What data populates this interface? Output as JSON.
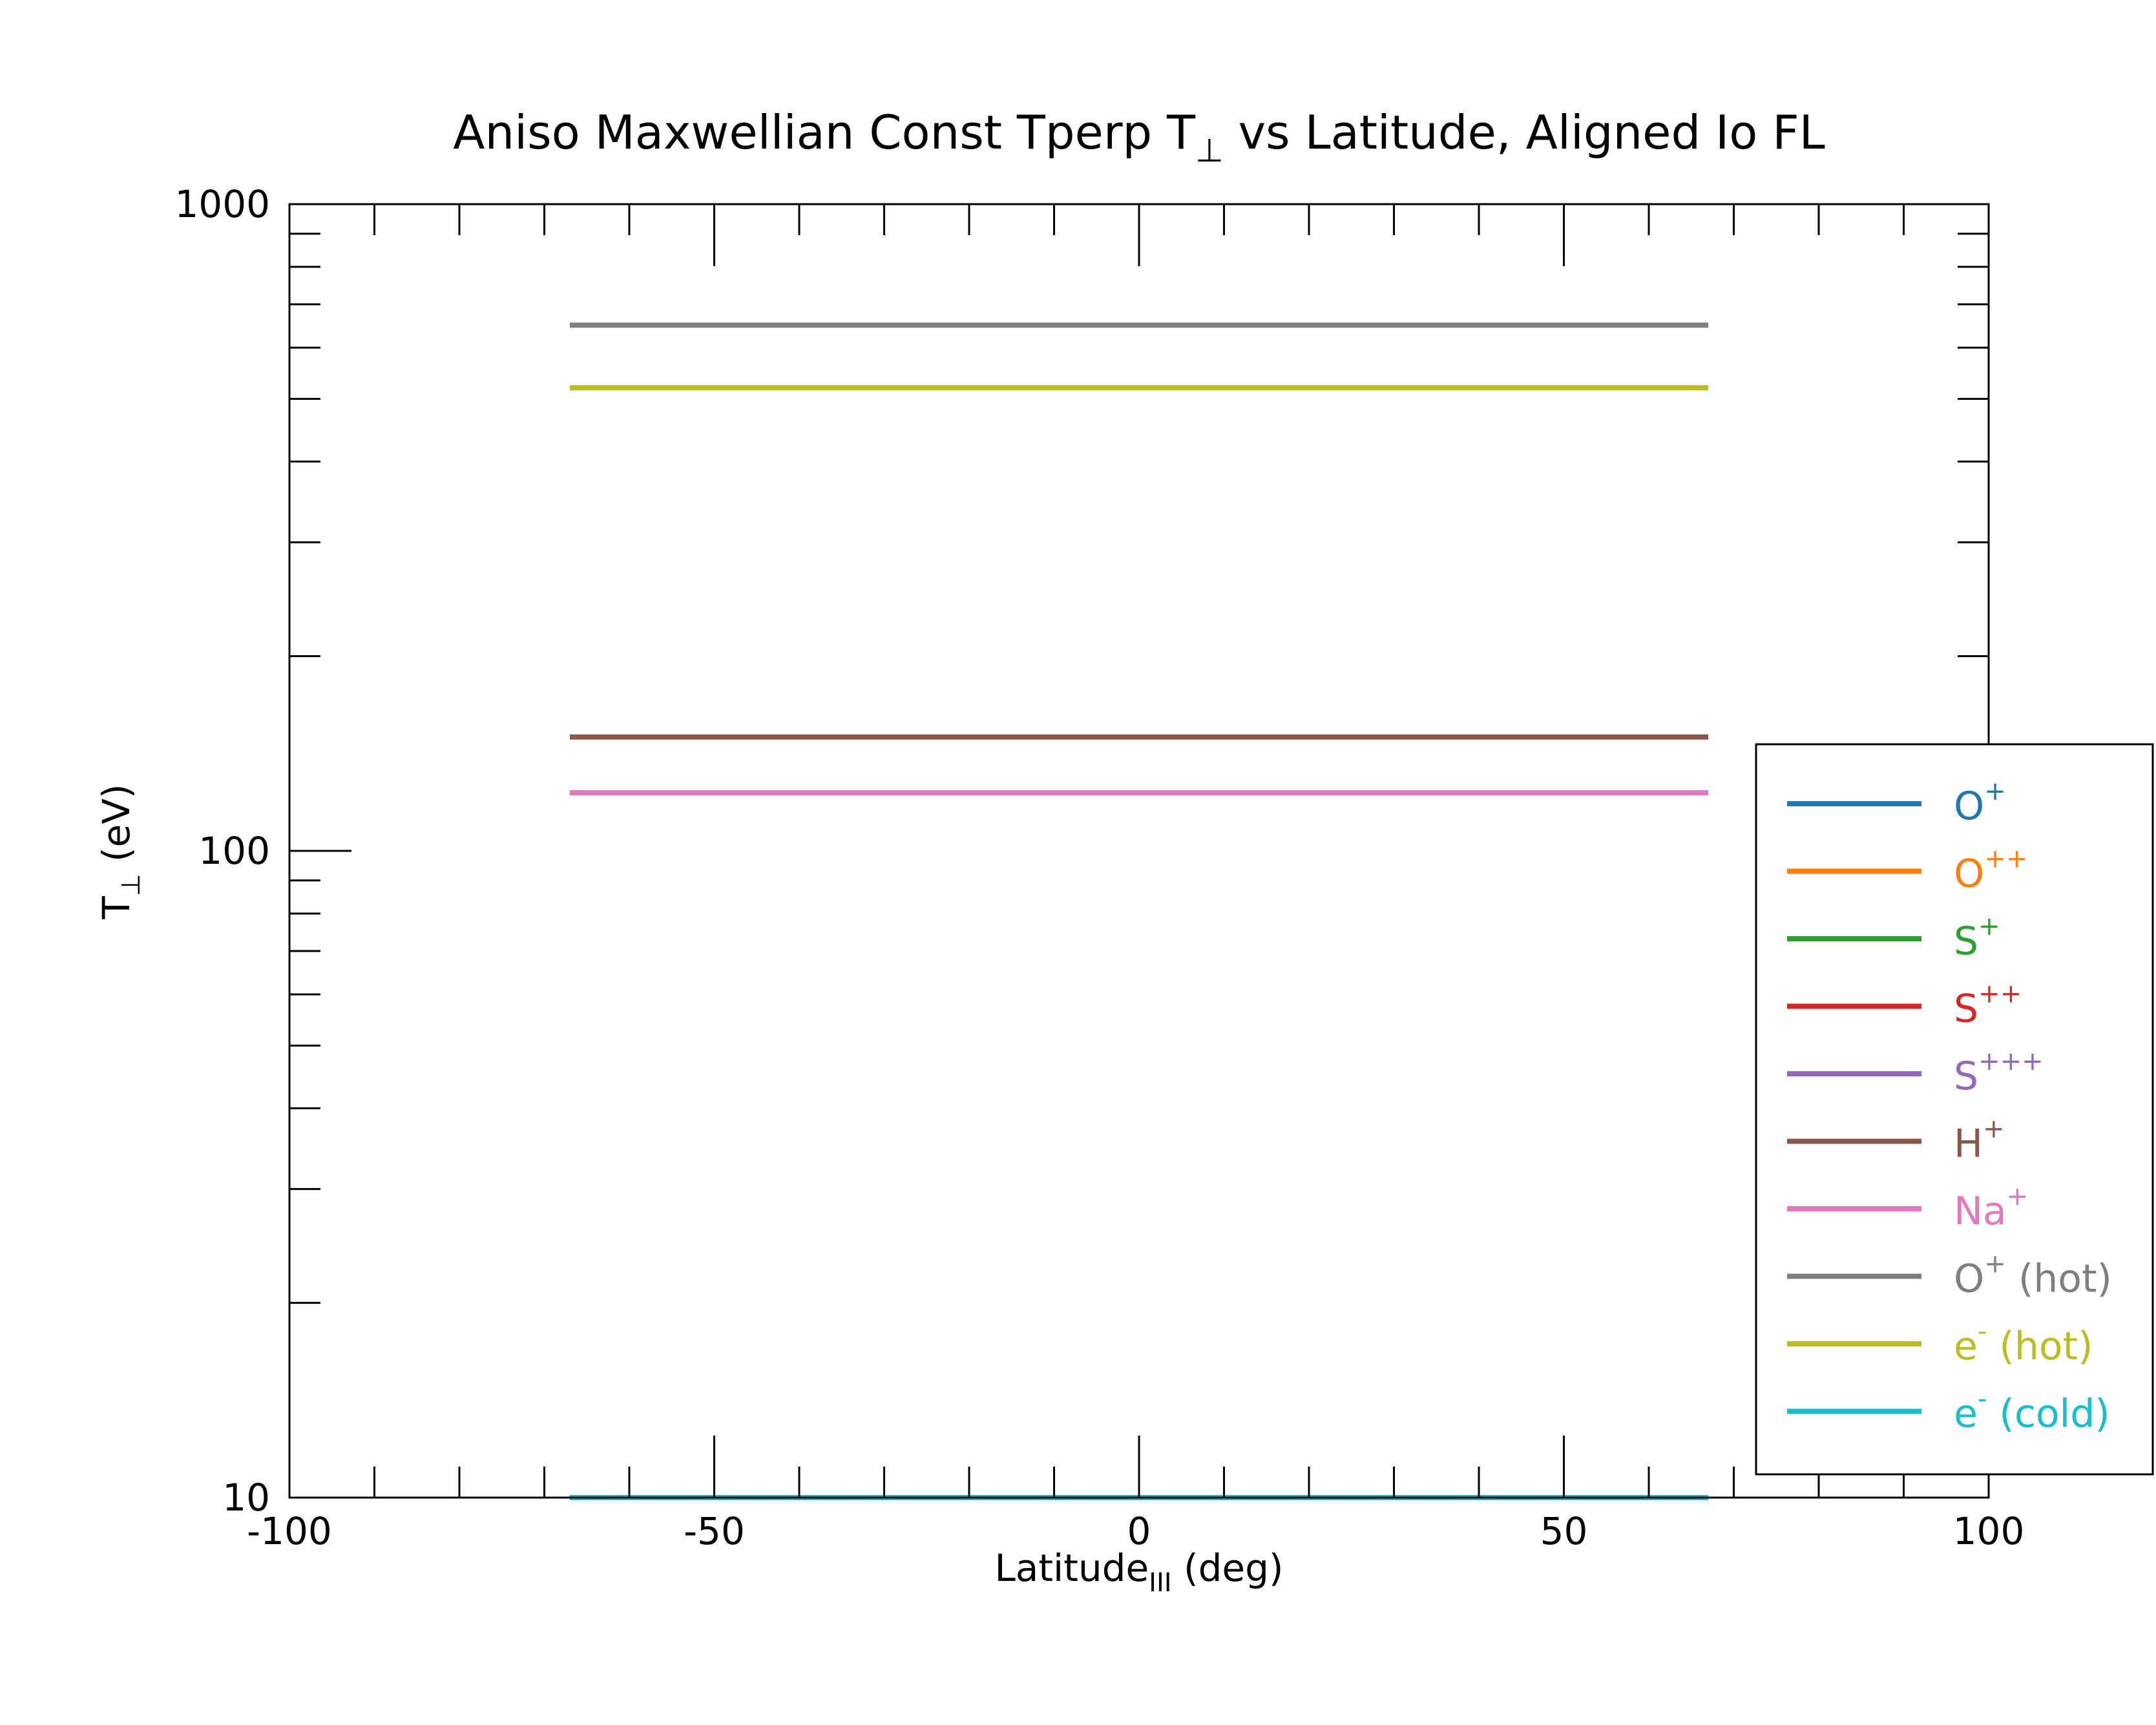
{
  "chart_data": {
    "type": "line",
    "title": "Aniso Maxwellian Const Tperp T⊥ vs Latitude, Aligned Io FL",
    "title_parts": {
      "main": "Aniso Maxwellian Const Tperp T",
      "sub": "⊥",
      "rest": " vs Latitude, Aligned Io FL"
    },
    "xlabel": "Latitude_III (deg)",
    "xlabel_parts": {
      "main": "Latitude",
      "sub": "III",
      "rest": " (deg)"
    },
    "ylabel": "T⊥ (eV)",
    "ylabel_parts": {
      "main": "T",
      "sub": "⊥",
      "rest": " (eV)"
    },
    "xlim": [
      -100,
      100
    ],
    "ylim": [
      10,
      1000
    ],
    "yscale": "log",
    "x_ticks": [
      {
        "value": -100,
        "label": "-100"
      },
      {
        "value": -50,
        "label": "-50"
      },
      {
        "value": 0,
        "label": "0"
      },
      {
        "value": 50,
        "label": "50"
      },
      {
        "value": 100,
        "label": "100"
      }
    ],
    "y_ticks": [
      {
        "value": 10,
        "label": "10"
      },
      {
        "value": 100,
        "label": "100"
      },
      {
        "value": 1000,
        "label": "1000"
      }
    ],
    "grid": false,
    "legend_position": "right",
    "series": [
      {
        "name": "O",
        "sup": "+",
        "suffix": "",
        "color": "#1f77b4",
        "x": [
          -67,
          67
        ],
        "y": [
          10,
          10
        ]
      },
      {
        "name": "O",
        "sup": "++",
        "suffix": "",
        "color": "#ff7f0e",
        "x": [
          -67,
          67
        ],
        "y": [
          10,
          10
        ]
      },
      {
        "name": "S",
        "sup": "+",
        "suffix": "",
        "color": "#2ca02c",
        "x": [
          -67,
          67
        ],
        "y": [
          10,
          10
        ]
      },
      {
        "name": "S",
        "sup": "++",
        "suffix": "",
        "color": "#d62728",
        "x": [
          -67,
          67
        ],
        "y": [
          10,
          10
        ]
      },
      {
        "name": "S",
        "sup": "+++",
        "suffix": "",
        "color": "#9467bd",
        "x": [
          -67,
          67
        ],
        "y": [
          10,
          10
        ]
      },
      {
        "name": "H",
        "sup": "+",
        "suffix": "",
        "color": "#8c564b",
        "x": [
          -67,
          67
        ],
        "y": [
          150,
          150
        ]
      },
      {
        "name": "Na",
        "sup": "+",
        "suffix": "",
        "color": "#e377c2",
        "x": [
          -67,
          67
        ],
        "y": [
          123,
          123
        ]
      },
      {
        "name": "O",
        "sup": "+",
        "suffix": " (hot)",
        "color": "#7f7f7f",
        "x": [
          -67,
          67
        ],
        "y": [
          650,
          650
        ]
      },
      {
        "name": "e",
        "sup": "-",
        "suffix": " (hot)",
        "color": "#bcbd22",
        "x": [
          -67,
          67
        ],
        "y": [
          520,
          520
        ]
      },
      {
        "name": "e",
        "sup": "-",
        "suffix": " (cold)",
        "color": "#17becf",
        "x": [
          -67,
          67
        ],
        "y": [
          10,
          10
        ]
      }
    ]
  }
}
